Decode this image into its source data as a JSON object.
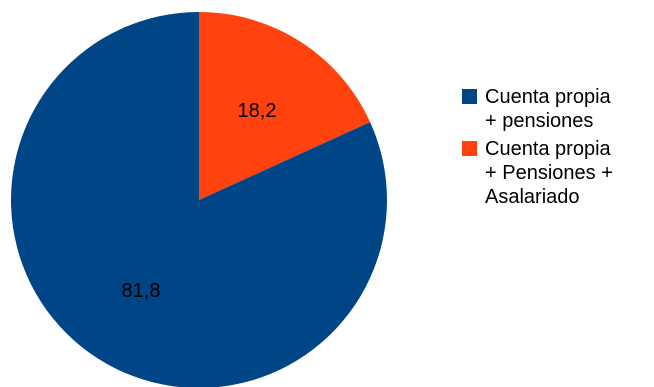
{
  "chart_data": {
    "type": "pie",
    "categories": [
      "Cuenta propia + pensiones",
      "Cuenta propia + Pensiones + Asalariado"
    ],
    "values": [
      81.8,
      18.2
    ],
    "value_labels": [
      "81,8",
      "18,2"
    ],
    "colors": [
      "#004586",
      "#ff420e"
    ],
    "legend_placement": "right",
    "legend_lines": [
      [
        "Cuenta propia",
        "+ pensiones"
      ],
      [
        "Cuenta propia",
        "+ Pensiones +",
        "Asalariado"
      ]
    ]
  }
}
